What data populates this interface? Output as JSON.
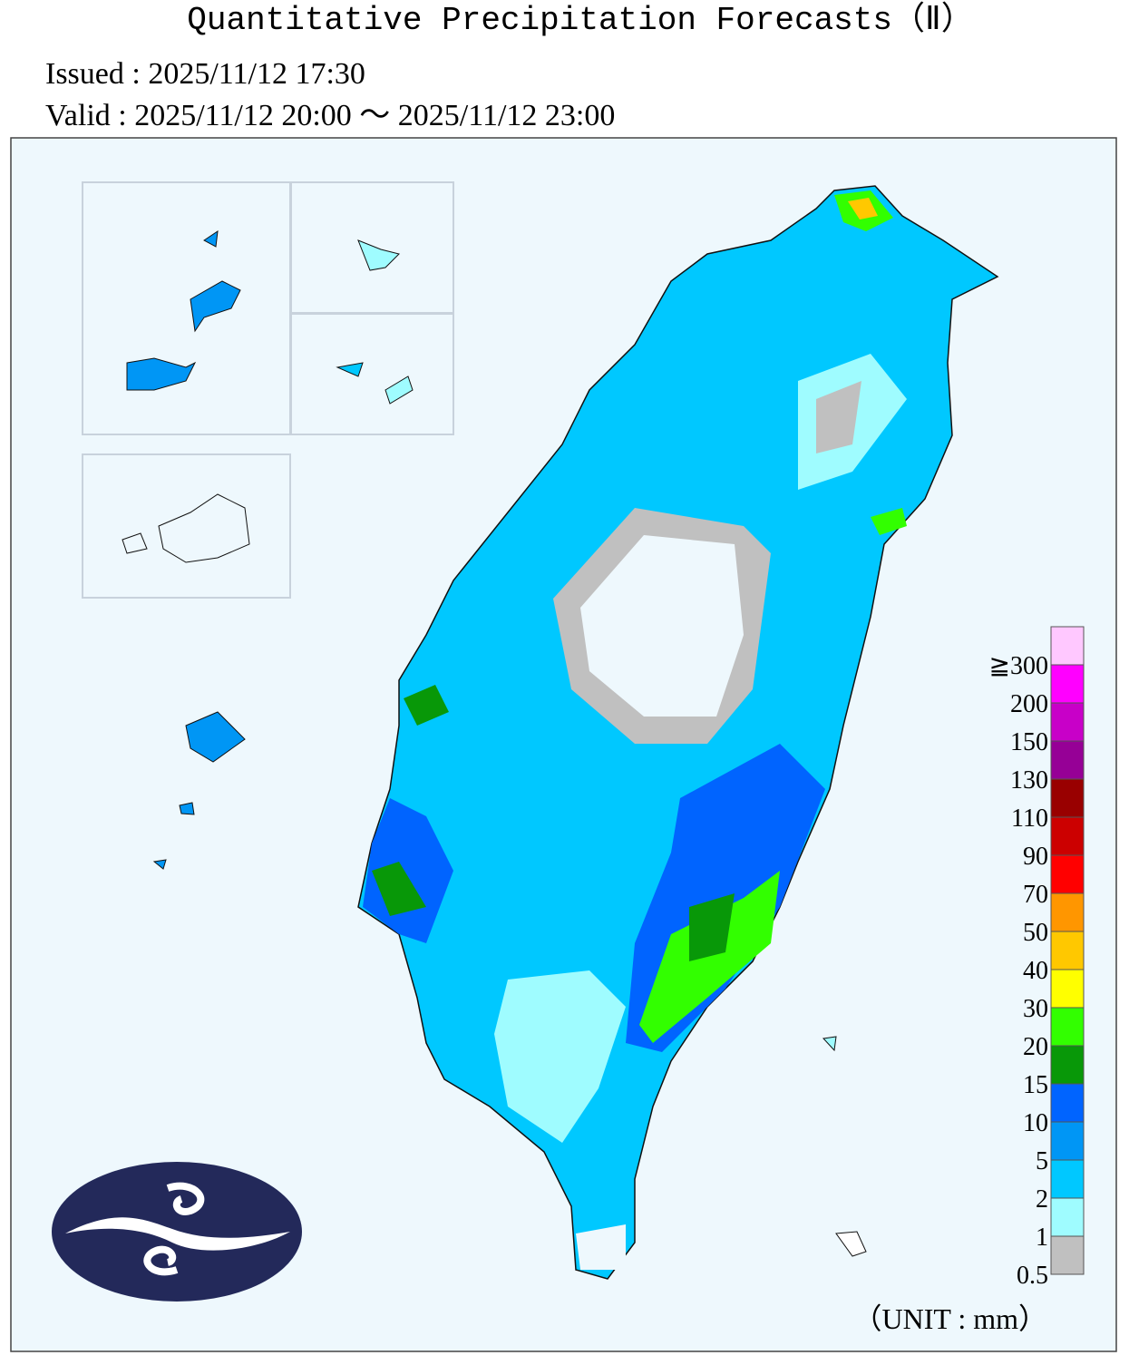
{
  "header": {
    "title": "Quantitative Precipitation Forecasts（Ⅱ）",
    "issued": "Issued : 2025/11/12 17:30",
    "valid": "Valid : 2025/11/12 20:00 ～ 2025/11/12 23:00"
  },
  "legend": {
    "levels": [
      {
        "label": "0.5",
        "color": "#c0c0c0"
      },
      {
        "label": "1",
        "color": "#9ffcff"
      },
      {
        "label": "2",
        "color": "#00c8ff"
      },
      {
        "label": "5",
        "color": "#0096f5"
      },
      {
        "label": "10",
        "color": "#0064ff"
      },
      {
        "label": "15",
        "color": "#089808"
      },
      {
        "label": "20",
        "color": "#32ff00"
      },
      {
        "label": "30",
        "color": "#ffff00"
      },
      {
        "label": "40",
        "color": "#ffc800"
      },
      {
        "label": "50",
        "color": "#ff9600"
      },
      {
        "label": "70",
        "color": "#ff0000"
      },
      {
        "label": "90",
        "color": "#cc0000"
      },
      {
        "label": "110",
        "color": "#990000"
      },
      {
        "label": "130",
        "color": "#960096"
      },
      {
        "label": "150",
        "color": "#c800c8"
      },
      {
        "label": "200",
        "color": "#ff00ff"
      },
      {
        "label": "≧300",
        "color": "#ffc8ff"
      }
    ],
    "unit": "（UNIT : mm）"
  }
}
